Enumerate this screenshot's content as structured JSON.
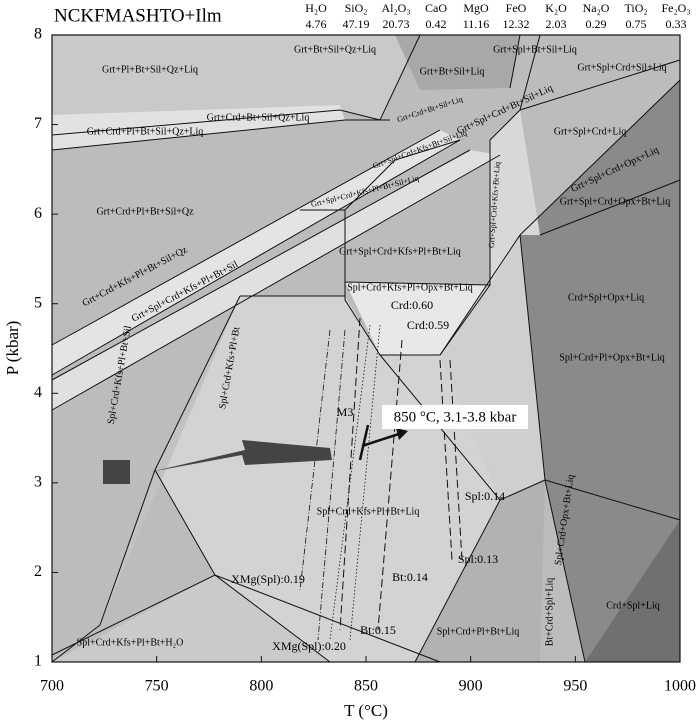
{
  "chart_data": {
    "type": "pseudosection",
    "title": "NCKFMASHTO+Ilm",
    "composition": [
      {
        "oxide": "H₂O",
        "value": 4.76
      },
      {
        "oxide": "SiO₂",
        "value": 47.19
      },
      {
        "oxide": "Al₂O₃",
        "value": 20.73
      },
      {
        "oxide": "CaO",
        "value": 0.42
      },
      {
        "oxide": "MgO",
        "value": 11.16
      },
      {
        "oxide": "FeO",
        "value": 12.32
      },
      {
        "oxide": "K₂O",
        "value": 2.03
      },
      {
        "oxide": "Na₂O",
        "value": 0.29
      },
      {
        "oxide": "TiO₂",
        "value": 0.75
      },
      {
        "oxide": "Fe₂O₃",
        "value": 0.33
      }
    ],
    "xlabel": "T (°C)",
    "ylabel": "P (kbar)",
    "xlim": [
      700,
      1000
    ],
    "xticks": [
      700,
      750,
      800,
      850,
      900,
      950,
      1000
    ],
    "ylim": [
      1,
      8
    ],
    "yticks": [
      1,
      2,
      3,
      4,
      5,
      6,
      7,
      8
    ],
    "fields": [
      "Grt+Pl+Bt+Sil+Qz+Liq",
      "Grt+Bt+Sil+Qz+Liq",
      "Grt+Bt+Sil+Liq",
      "Grt+Spl+Bt+Sil+Liq",
      "Grt+Spl+Crd+Sil+Liq",
      "Grt+Crd+Bt+Sil+Qz+Liq",
      "Grt+Crd+Pl+Bt+Sil+Qz+Liq",
      "Grt+Crd+Bt+Sil+Liq",
      "Grt+Spl+Crd+Bt+Sil+Liq",
      "Grt+Spl+Crd+Kfs+Bt+Sil+Liq",
      "Grt+Spl+Crd+Liq",
      "Grt+Spl+Crd+Opx+Liq",
      "Grt+Spl+Crd+Kfs+Pl+Bt+Sil+Liq",
      "Grt+Crd+Pl+Bt+Sil+Qz",
      "Grt+Spl+Crd+Opx+Bt+Liq",
      "Grt+Spl+Crd+Kfs+Pl+Bt+Liq",
      "Grt+Spl+Crd+Kfs+Bt+Liq",
      "Grt+Crd+Kfs+Pl+Bt+Sil+Qz",
      "Grt+Spl+Crd+Kfs+Pl+Bt+Sil",
      "Spl+Crd+Kfs+Pl+Opx+Bt+Liq",
      "Crd+Spl+Opx+Liq",
      "Spl+Crd+Pl+Opx+Bt+Liq",
      "Spl+Crd+Kfs+Pl+Bt+Sil",
      "Spl+Crd+Kfs+Pl+Bt",
      "Spl+Crd+Kfs+Pl+Bt+Liq",
      "Spl+Crd+Opx+Bt+Liq",
      "Spl+Crd+Pl+Bt+Liq",
      "Bt+Crd+Spl+Liq",
      "Crd+Spl+Liq",
      "Spl+Crd+Kfs+Pl+Bt+H₂O"
    ],
    "annotations": [
      "Crd:0.60",
      "Crd:0.59",
      "M3",
      "850 °C, 3.1-3.8 kbar",
      "Spl:0.14",
      "Spl:0.13",
      "Bt:0.14",
      "Bt:0.15",
      "XMg(Spl):0.19",
      "XMg(Spl):0.20"
    ]
  }
}
